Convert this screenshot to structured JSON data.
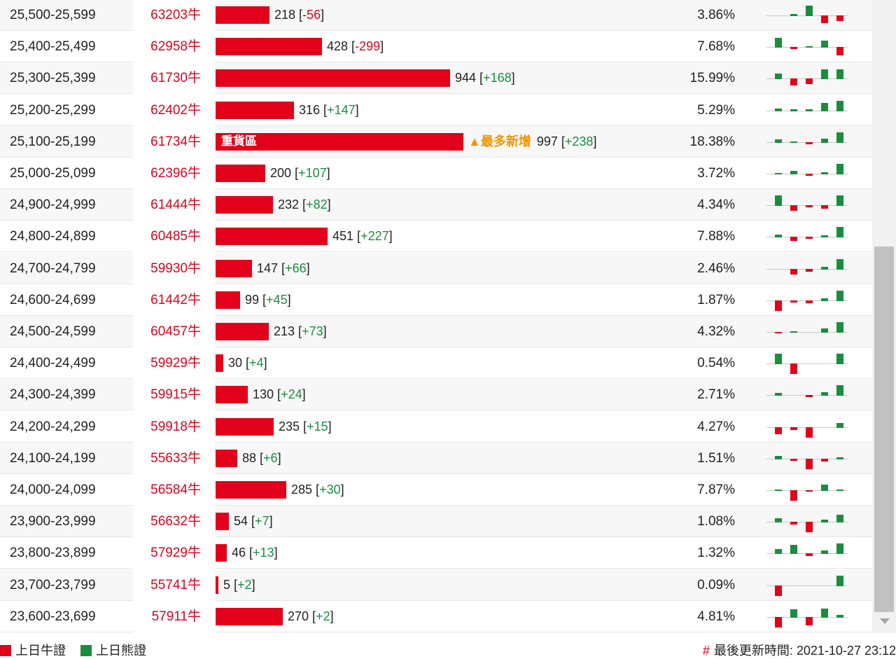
{
  "colors": {
    "bull": "#e2001a",
    "bear": "#1a8d3f",
    "badge": "#f29500"
  },
  "heavy_label": "重貨區",
  "most_added_label": "▲最多新增",
  "rows": [
    {
      "range": "25,500-25,599",
      "code": "63203牛",
      "count": 218,
      "change": "-56",
      "pct": "3.86%",
      "spark": [
        0,
        2,
        14,
        -10,
        -7
      ]
    },
    {
      "range": "25,400-25,499",
      "code": "62958牛",
      "count": 428,
      "change": "-299",
      "pct": "7.68%",
      "spark": [
        13,
        -2,
        1,
        9,
        -11
      ]
    },
    {
      "range": "25,300-25,399",
      "code": "61730牛",
      "count": 944,
      "change": "+168",
      "pct": "15.99%",
      "spark": [
        7,
        -9,
        -7,
        13,
        13
      ]
    },
    {
      "range": "25,200-25,299",
      "code": "62402牛",
      "count": 316,
      "change": "+147",
      "pct": "5.29%",
      "spark": [
        3,
        2,
        2,
        11,
        14
      ]
    },
    {
      "range": "25,100-25,199",
      "code": "61734牛",
      "count": 997,
      "change": "+238",
      "pct": "18.38%",
      "spark": [
        4,
        1,
        -2,
        5,
        14
      ],
      "heavy": true,
      "most_added": true
    },
    {
      "range": "25,000-25,099",
      "code": "62396牛",
      "count": 200,
      "change": "+107",
      "pct": "3.72%",
      "spark": [
        1,
        4,
        -2,
        2,
        14
      ]
    },
    {
      "range": "24,900-24,999",
      "code": "61444牛",
      "count": 232,
      "change": "+82",
      "pct": "4.34%",
      "spark": [
        14,
        -7,
        -2,
        -4,
        14
      ]
    },
    {
      "range": "24,800-24,899",
      "code": "60485牛",
      "count": 451,
      "change": "+227",
      "pct": "7.88%",
      "spark": [
        3,
        -5,
        -2,
        2,
        14
      ]
    },
    {
      "range": "24,700-24,799",
      "code": "59930牛",
      "count": 147,
      "change": "+66",
      "pct": "2.46%",
      "spark": [
        0,
        -7,
        -3,
        3,
        14
      ]
    },
    {
      "range": "24,600-24,699",
      "code": "61442牛",
      "count": 99,
      "change": "+45",
      "pct": "1.87%",
      "spark": [
        -14,
        -2,
        -3,
        3,
        14
      ]
    },
    {
      "range": "24,500-24,599",
      "code": "60457牛",
      "count": 213,
      "change": "+73",
      "pct": "4.32%",
      "spark": [
        -1,
        1,
        0,
        5,
        14
      ]
    },
    {
      "range": "24,400-24,499",
      "code": "59929牛",
      "count": 30,
      "change": "+4",
      "pct": "0.54%",
      "spark": [
        14,
        -14,
        0,
        0,
        14
      ]
    },
    {
      "range": "24,300-24,399",
      "code": "59915牛",
      "count": 130,
      "change": "+24",
      "pct": "2.71%",
      "spark": [
        3,
        0,
        -2,
        4,
        14
      ]
    },
    {
      "range": "24,200-24,299",
      "code": "59918牛",
      "count": 235,
      "change": "+15",
      "pct": "4.27%",
      "spark": [
        -9,
        -3,
        -14,
        0,
        6
      ]
    },
    {
      "range": "24,100-24,199",
      "code": "55633牛",
      "count": 88,
      "change": "+6",
      "pct": "1.51%",
      "spark": [
        4,
        -2,
        -14,
        -3,
        2
      ]
    },
    {
      "range": "24,000-24,099",
      "code": "56584牛",
      "count": 285,
      "change": "+30",
      "pct": "7.87%",
      "spark": [
        1,
        -14,
        -1,
        8,
        1
      ]
    },
    {
      "range": "23,900-23,999",
      "code": "56632牛",
      "count": 54,
      "change": "+7",
      "pct": "1.08%",
      "spark": [
        5,
        -3,
        -14,
        3,
        10
      ]
    },
    {
      "range": "23,800-23,899",
      "code": "57929牛",
      "count": 46,
      "change": "+13",
      "pct": "1.32%",
      "spark": [
        6,
        12,
        -3,
        4,
        14
      ]
    },
    {
      "range": "23,700-23,799",
      "code": "55741牛",
      "count": 5,
      "change": "+2",
      "pct": "0.09%",
      "spark": [
        -14,
        0,
        0,
        0,
        14
      ]
    },
    {
      "range": "23,600-23,699",
      "code": "57911牛",
      "count": 270,
      "change": "+2",
      "pct": "4.81%",
      "spark": [
        -14,
        11,
        -11,
        12,
        3
      ]
    }
  ],
  "legend": {
    "bull": "上日牛證",
    "bear": "上日熊證"
  },
  "update": {
    "hash": "#",
    "text": "最後更新時間: 2021-10-27 23:12"
  }
}
